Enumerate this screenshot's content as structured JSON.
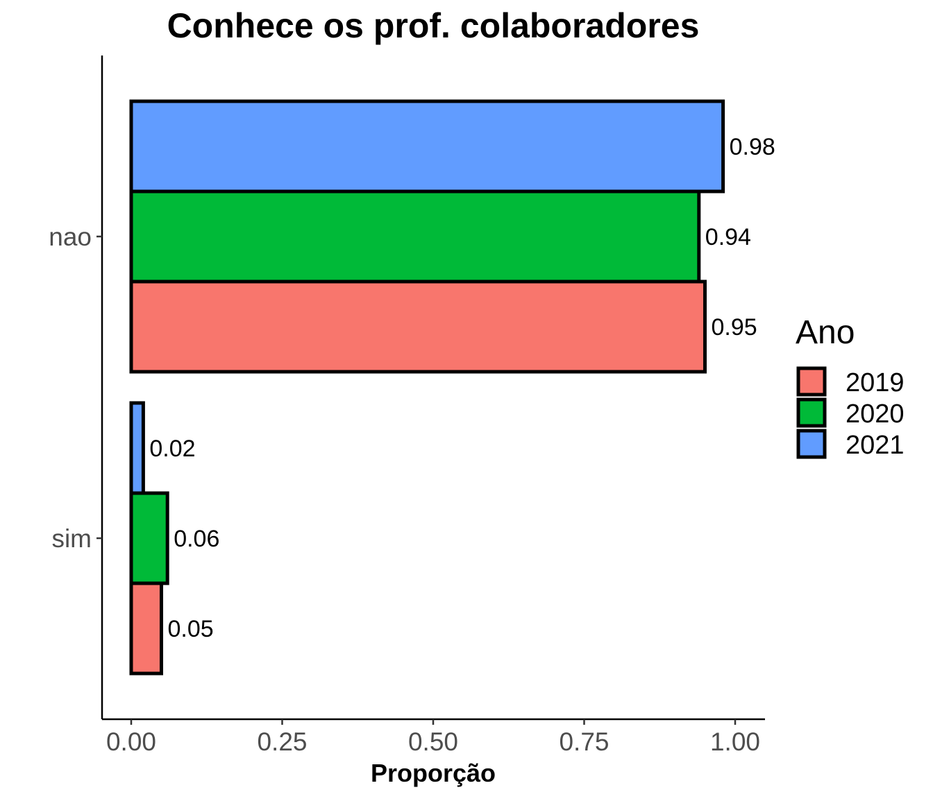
{
  "chart_data": {
    "type": "bar",
    "orientation": "horizontal",
    "title": "Conhece os prof. colaboradores",
    "xlabel": "Proporção",
    "ylabel": "",
    "xlim": [
      0,
      1
    ],
    "x_ticks": [
      "0.00",
      "0.25",
      "0.50",
      "0.75",
      "1.00"
    ],
    "categories": [
      "nao",
      "sim"
    ],
    "series": [
      {
        "name": "2019",
        "color": "#F8766D",
        "values": [
          0.95,
          0.05
        ],
        "labels": [
          "0.95",
          "0.05"
        ]
      },
      {
        "name": "2020",
        "color": "#00BA38",
        "values": [
          0.94,
          0.06
        ],
        "labels": [
          "0.94",
          "0.06"
        ]
      },
      {
        "name": "2021",
        "color": "#619CFF",
        "values": [
          0.98,
          0.02
        ],
        "labels": [
          "0.98",
          "0.02"
        ]
      }
    ],
    "legend": {
      "title": "Ano",
      "position": "right"
    },
    "grid": false
  }
}
